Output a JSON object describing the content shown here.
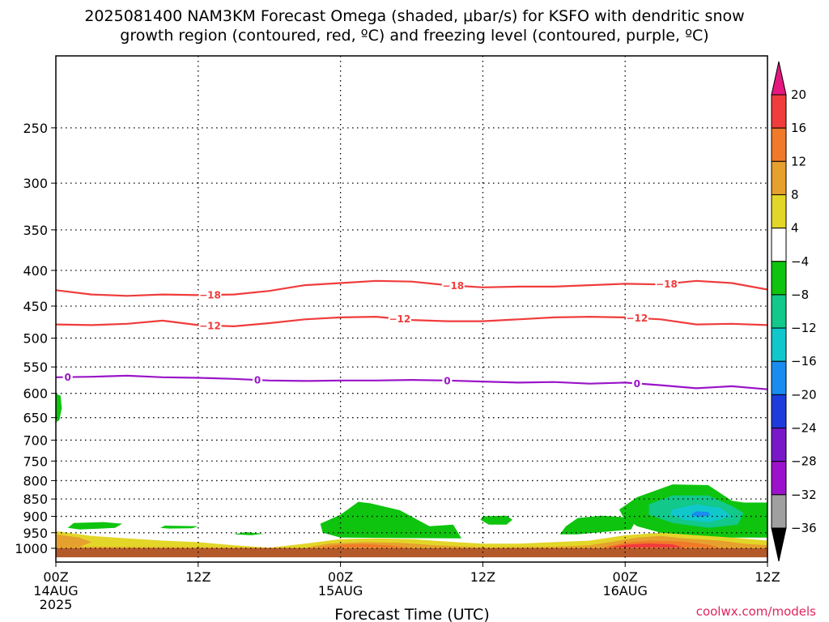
{
  "chart_data": {
    "type": "heatmap",
    "title_line1": "2025081400 NAM3KM Forecast Omega (shaded, μbar/s) for KSFO with dendritic snow",
    "title_line2": "growth region (contoured, red, ºC) and freezing level (contoured, purple, ºC)",
    "xlabel": "Forecast Time (UTC)",
    "ylabel": "",
    "y_scale": "log-pressure",
    "ylim": [
      1000,
      200
    ],
    "xlim": [
      "2025-08-14 00Z",
      "2025-08-16 12Z"
    ],
    "grid": true,
    "y_ticks": [
      "250",
      "300",
      "350",
      "400",
      "450",
      "500",
      "550",
      "600",
      "650",
      "700",
      "750",
      "800",
      "850",
      "900",
      "950",
      "1000"
    ],
    "x_ticks": [
      {
        "hours": 0,
        "lines": [
          "00Z",
          "14AUG",
          "2025"
        ]
      },
      {
        "hours": 12,
        "lines": [
          "12Z"
        ]
      },
      {
        "hours": 24,
        "lines": [
          "00Z",
          "15AUG"
        ]
      },
      {
        "hours": 36,
        "lines": [
          "12Z"
        ]
      },
      {
        "hours": 48,
        "lines": [
          "00Z",
          "16AUG"
        ]
      },
      {
        "hours": 60,
        "lines": [
          "12Z"
        ]
      }
    ],
    "colorbar": {
      "labels": [
        "20",
        "16",
        "12",
        "8",
        "4",
        "−4",
        "−8",
        "−12",
        "−16",
        "−20",
        "−24",
        "−28",
        "−32",
        "−36"
      ],
      "colors": [
        "#e4187f",
        "#f03c3c",
        "#f07a2a",
        "#e6a02e",
        "#e2d628",
        "#ffffff",
        "#0ec40e",
        "#12c88a",
        "#10c8cc",
        "#1a8cf0",
        "#1e3cdc",
        "#7818c8",
        "#9c12cc",
        "#a0a0a0",
        "#000000"
      ]
    },
    "contours": [
      {
        "name": "-18",
        "color": "#f03c3c",
        "label": "−18",
        "label_hours": [
          13,
          33.5,
          51.5
        ],
        "points": [
          [
            0,
            427
          ],
          [
            3,
            433
          ],
          [
            6,
            435
          ],
          [
            9,
            433
          ],
          [
            12,
            434
          ],
          [
            15,
            433
          ],
          [
            18,
            428
          ],
          [
            21,
            420
          ],
          [
            24,
            417
          ],
          [
            27,
            414
          ],
          [
            30,
            415
          ],
          [
            33,
            420
          ],
          [
            36,
            423
          ],
          [
            39,
            422
          ],
          [
            42,
            422
          ],
          [
            45,
            420
          ],
          [
            48,
            418
          ],
          [
            51,
            419
          ],
          [
            54,
            414
          ],
          [
            57,
            417
          ],
          [
            60,
            426
          ]
        ]
      },
      {
        "name": "-12",
        "color": "#f03c3c",
        "label": "−12",
        "label_hours": [
          13,
          29,
          49
        ],
        "points": [
          [
            0,
            478
          ],
          [
            3,
            479
          ],
          [
            6,
            477
          ],
          [
            9,
            472
          ],
          [
            12,
            479
          ],
          [
            15,
            481
          ],
          [
            18,
            476
          ],
          [
            21,
            470
          ],
          [
            24,
            467
          ],
          [
            27,
            466
          ],
          [
            30,
            471
          ],
          [
            33,
            473
          ],
          [
            36,
            473
          ],
          [
            39,
            470
          ],
          [
            42,
            467
          ],
          [
            45,
            466
          ],
          [
            48,
            467
          ],
          [
            51,
            470
          ],
          [
            54,
            478
          ],
          [
            57,
            477
          ],
          [
            60,
            479
          ]
        ]
      },
      {
        "name": "0",
        "color": "#9a14c8",
        "label": "0",
        "label_hours": [
          1,
          17,
          33,
          49
        ],
        "points": [
          [
            0,
            569
          ],
          [
            3,
            568
          ],
          [
            6,
            566
          ],
          [
            9,
            569
          ],
          [
            12,
            570
          ],
          [
            15,
            572
          ],
          [
            18,
            575
          ],
          [
            21,
            576
          ],
          [
            24,
            575
          ],
          [
            27,
            575
          ],
          [
            30,
            574
          ],
          [
            33,
            575
          ],
          [
            36,
            577
          ],
          [
            39,
            579
          ],
          [
            42,
            578
          ],
          [
            45,
            581
          ],
          [
            48,
            579
          ],
          [
            51,
            584
          ],
          [
            54,
            590
          ],
          [
            57,
            586
          ],
          [
            60,
            592
          ]
        ]
      }
    ],
    "omega_areas": [
      {
        "color": "#b45a2a",
        "points": [
          [
            0,
            1030
          ],
          [
            0,
            1000
          ],
          [
            60,
            1000
          ],
          [
            60,
            1030
          ]
        ]
      },
      {
        "color": "#e2d628",
        "points": [
          [
            0,
            1000
          ],
          [
            0,
            945
          ],
          [
            3,
            960
          ],
          [
            5,
            965
          ],
          [
            9,
            975
          ],
          [
            12,
            980
          ],
          [
            15,
            990
          ],
          [
            18,
            998
          ],
          [
            21,
            985
          ],
          [
            24,
            970
          ],
          [
            27,
            968
          ],
          [
            30,
            970
          ],
          [
            33,
            978
          ],
          [
            36,
            985
          ],
          [
            39,
            985
          ],
          [
            42,
            980
          ],
          [
            45,
            975
          ],
          [
            48,
            958
          ],
          [
            51,
            950
          ],
          [
            54,
            955
          ],
          [
            57,
            965
          ],
          [
            60,
            975
          ],
          [
            60,
            1000
          ]
        ]
      },
      {
        "color": "#e6a02e",
        "points": [
          [
            0,
            1000
          ],
          [
            0,
            955
          ],
          [
            2,
            965
          ],
          [
            3,
            980
          ],
          [
            2,
            995
          ],
          [
            21,
            998
          ],
          [
            23,
            985
          ],
          [
            26,
            980
          ],
          [
            29,
            982
          ],
          [
            32,
            990
          ],
          [
            36,
            997
          ],
          [
            42,
            995
          ],
          [
            45,
            990
          ],
          [
            47,
            978
          ],
          [
            49,
            965
          ],
          [
            51,
            960
          ],
          [
            53,
            968
          ],
          [
            56,
            975
          ],
          [
            58,
            985
          ],
          [
            60,
            990
          ],
          [
            60,
            1000
          ]
        ]
      },
      {
        "color": "#f07a2a",
        "points": [
          [
            22,
            998
          ],
          [
            24,
            988
          ],
          [
            26,
            986
          ],
          [
            28,
            990
          ],
          [
            30,
            998
          ]
        ]
      },
      {
        "color": "#f07a2a",
        "points": [
          [
            46,
            998
          ],
          [
            48,
            982
          ],
          [
            50,
            975
          ],
          [
            53,
            978
          ],
          [
            55,
            988
          ],
          [
            56,
            998
          ]
        ]
      },
      {
        "color": "#f03c3c",
        "points": [
          [
            46.5,
            998
          ],
          [
            48,
            988
          ],
          [
            50,
            984
          ],
          [
            52,
            987
          ],
          [
            53,
            998
          ]
        ]
      },
      {
        "color": "#0ec40e",
        "points": [
          [
            0,
            600
          ],
          [
            0.4,
            605
          ],
          [
            0.5,
            630
          ],
          [
            0.3,
            655
          ],
          [
            0,
            660
          ]
        ]
      },
      {
        "color": "#0ec40e",
        "points": [
          [
            1,
            935
          ],
          [
            1.5,
            920
          ],
          [
            4,
            917
          ],
          [
            5.6,
            922
          ],
          [
            5,
            935
          ],
          [
            2,
            940
          ]
        ]
      },
      {
        "color": "#0ec40e",
        "points": [
          [
            8.8,
            935
          ],
          [
            9.2,
            928
          ],
          [
            12,
            930
          ],
          [
            11.5,
            936
          ],
          [
            9.5,
            937
          ]
        ]
      },
      {
        "color": "#0ec40e",
        "points": [
          [
            15,
            955
          ],
          [
            16,
            948
          ],
          [
            17.5,
            953
          ],
          [
            16.5,
            958
          ]
        ]
      },
      {
        "color": "#0ec40e",
        "points": [
          [
            22.3,
            922
          ],
          [
            24,
            895
          ],
          [
            25.5,
            858
          ],
          [
            26.5,
            862
          ],
          [
            29,
            882
          ],
          [
            31.5,
            930
          ],
          [
            33.5,
            925
          ],
          [
            34.2,
            968
          ],
          [
            24,
            965
          ],
          [
            22.5,
            950
          ]
        ]
      },
      {
        "color": "#0ec40e",
        "points": [
          [
            36,
            900
          ],
          [
            38,
            898
          ],
          [
            38.5,
            910
          ],
          [
            38,
            925
          ],
          [
            36.5,
            925
          ],
          [
            35.8,
            910
          ]
        ]
      },
      {
        "color": "#0ec40e",
        "points": [
          [
            42.5,
            955
          ],
          [
            43,
            930
          ],
          [
            44,
            905
          ],
          [
            46,
            898
          ],
          [
            49,
            905
          ],
          [
            48.5,
            940
          ],
          [
            44,
            955
          ]
        ]
      },
      {
        "color": "#0ec40e",
        "points": [
          [
            47.5,
            880
          ],
          [
            49,
            845
          ],
          [
            52,
            810
          ],
          [
            55,
            812
          ],
          [
            57,
            855
          ],
          [
            58,
            860
          ],
          [
            60,
            860
          ],
          [
            60,
            965
          ],
          [
            57,
            965
          ],
          [
            54,
            958
          ],
          [
            51,
            950
          ],
          [
            49,
            930
          ],
          [
            47.8,
            900
          ]
        ]
      },
      {
        "color": "#12c88a",
        "points": [
          [
            50,
            865
          ],
          [
            52,
            840
          ],
          [
            55,
            840
          ],
          [
            57,
            870
          ],
          [
            58,
            890
          ],
          [
            57.5,
            925
          ],
          [
            55,
            935
          ],
          [
            52,
            920
          ],
          [
            50,
            895
          ]
        ]
      },
      {
        "color": "#10c8cc",
        "points": [
          [
            52,
            880
          ],
          [
            54,
            865
          ],
          [
            56,
            875
          ],
          [
            57,
            900
          ],
          [
            55,
            918
          ],
          [
            53,
            910
          ],
          [
            51.8,
            895
          ]
        ]
      },
      {
        "color": "#1a8cf0",
        "points": [
          [
            53.5,
            895
          ],
          [
            54,
            885
          ],
          [
            55,
            887
          ],
          [
            55.2,
            897
          ],
          [
            54.2,
            902
          ]
        ]
      }
    ]
  },
  "watermark": "coolwx.com/models"
}
